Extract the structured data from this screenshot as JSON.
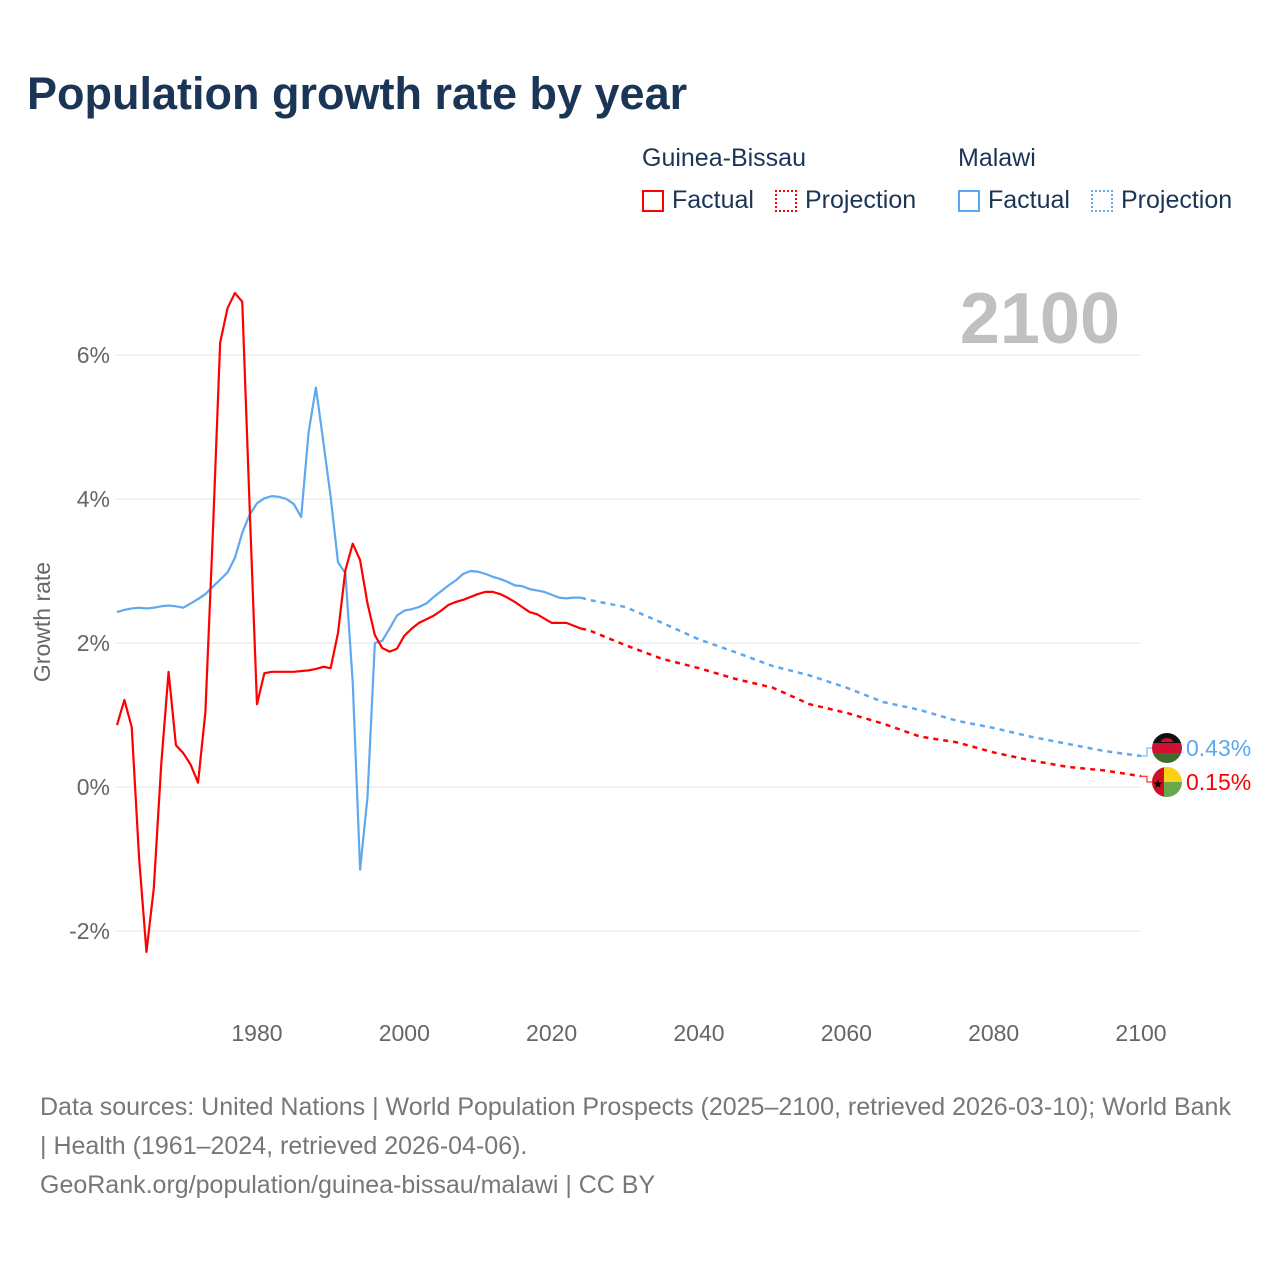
{
  "title": "Population growth rate by year",
  "legend": {
    "groups": [
      {
        "name": "Guinea-Bissau",
        "color": "#ff0000",
        "factual_label": "Factual",
        "projection_label": "Projection"
      },
      {
        "name": "Malawi",
        "color": "#5ea8f0",
        "factual_label": "Factual",
        "projection_label": "Projection"
      }
    ]
  },
  "footer": {
    "sources": "Data sources: United Nations | World Population Prospects (2025–2100, retrieved 2026-03-10); World Bank | Health (1961–2024, retrieved 2026-04-06).",
    "url": "GeoRank.org/population/guinea-bissau/malawi | CC BY"
  },
  "chart_data": {
    "type": "line",
    "title": "Population growth rate by year",
    "ylabel": "Growth rate",
    "xlabel": "",
    "current_year_label": "2100",
    "xlim": [
      1961,
      2100
    ],
    "ylim": [
      -3,
      7
    ],
    "yticks": [
      -2,
      0,
      2,
      4,
      6
    ],
    "ytick_labels": [
      "-2%",
      "0%",
      "2%",
      "4%",
      "6%"
    ],
    "xticks": [
      1980,
      2000,
      2020,
      2040,
      2060,
      2080,
      2100
    ],
    "xtick_labels": [
      "1980",
      "2000",
      "2020",
      "2040",
      "2060",
      "2080",
      "2100"
    ],
    "grid": true,
    "series": [
      {
        "name": "Guinea-Bissau",
        "color": "#ff0000",
        "end_label": "0.15%",
        "factual": {
          "start_year": 1961,
          "values": [
            0.86,
            1.21,
            0.83,
            -0.99,
            -2.29,
            -1.4,
            0.31,
            1.6,
            0.58,
            0.47,
            0.31,
            0.06,
            1.04,
            3.5,
            6.17,
            6.65,
            6.86,
            6.74,
            3.9,
            1.15,
            1.58,
            1.6,
            1.6,
            1.6,
            1.6,
            1.61,
            1.62,
            1.64,
            1.67,
            1.65,
            2.14,
            3.01,
            3.38,
            3.15,
            2.55,
            2.11,
            1.93,
            1.88,
            1.92,
            2.1,
            2.2,
            2.28,
            2.33,
            2.38,
            2.45,
            2.53,
            2.57,
            2.6,
            2.64,
            2.68,
            2.71,
            2.71,
            2.68,
            2.63,
            2.57,
            2.5,
            2.43,
            2.4,
            2.34,
            2.28,
            2.28,
            2.28,
            2.24,
            2.2
          ]
        },
        "projection": {
          "years": [
            2024,
            2025,
            2030,
            2035,
            2040,
            2045,
            2050,
            2055,
            2060,
            2065,
            2070,
            2075,
            2080,
            2085,
            2090,
            2095,
            2100
          ],
          "values": [
            2.2,
            2.18,
            1.97,
            1.78,
            1.65,
            1.5,
            1.38,
            1.15,
            1.03,
            0.88,
            0.7,
            0.62,
            0.48,
            0.37,
            0.28,
            0.23,
            0.15
          ]
        }
      },
      {
        "name": "Malawi",
        "color": "#5ea8f0",
        "end_label": "0.43%",
        "factual": {
          "start_year": 1961,
          "values": [
            2.43,
            2.46,
            2.48,
            2.49,
            2.48,
            2.49,
            2.51,
            2.52,
            2.51,
            2.49,
            2.55,
            2.61,
            2.68,
            2.78,
            2.88,
            2.98,
            3.18,
            3.53,
            3.78,
            3.94,
            4.01,
            4.04,
            4.03,
            4.0,
            3.93,
            3.75,
            4.92,
            5.55,
            4.8,
            4.03,
            3.12,
            2.97,
            1.45,
            -1.15,
            -0.14,
            2.0,
            2.03,
            2.2,
            2.38,
            2.45,
            2.47,
            2.5,
            2.55,
            2.64,
            2.72,
            2.8,
            2.87,
            2.96,
            3.0,
            2.99,
            2.96,
            2.92,
            2.89,
            2.85,
            2.8,
            2.79,
            2.75,
            2.73,
            2.71,
            2.67,
            2.63,
            2.62,
            2.63,
            2.63
          ]
        },
        "projection": {
          "years": [
            2024,
            2025,
            2030,
            2035,
            2040,
            2045,
            2050,
            2055,
            2060,
            2065,
            2070,
            2075,
            2080,
            2085,
            2090,
            2095,
            2100
          ],
          "values": [
            2.63,
            2.6,
            2.5,
            2.28,
            2.05,
            1.87,
            1.68,
            1.55,
            1.38,
            1.18,
            1.07,
            0.92,
            0.82,
            0.7,
            0.6,
            0.5,
            0.43
          ]
        }
      }
    ]
  }
}
